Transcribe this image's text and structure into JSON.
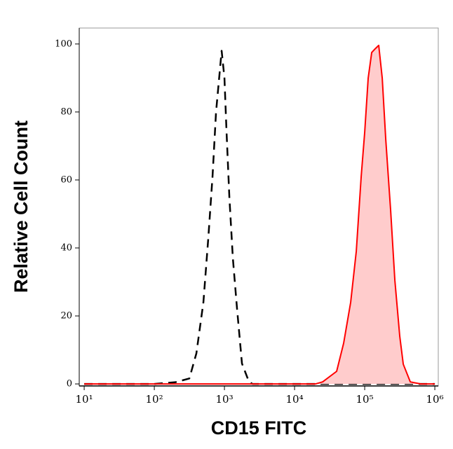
{
  "chart_data": {
    "type": "histogram-overlay",
    "x_label": "CD15 FITC",
    "y_label": "Relative Cell Count",
    "xscale": "log",
    "xlim": [
      8.5,
      1120000
    ],
    "ylim": [
      -0.6,
      104.7
    ],
    "xticks": [
      {
        "value": 10,
        "label": "10¹"
      },
      {
        "value": 100,
        "label": "10²"
      },
      {
        "value": 1000,
        "label": "10³"
      },
      {
        "value": 10000,
        "label": "10⁴"
      },
      {
        "value": 100000,
        "label": "10⁵"
      },
      {
        "value": 1000000,
        "label": "10⁶"
      }
    ],
    "yticks": [
      0,
      20,
      40,
      60,
      80,
      100
    ],
    "series": [
      {
        "color": "#000000",
        "dashed": true,
        "filled": false,
        "x": [
          10,
          100,
          200,
          316,
          398,
          501,
          589,
          676,
          759,
          832,
          912,
          1000,
          1072,
          1175,
          1318,
          1514,
          1778,
          2239,
          2512,
          10000,
          100000,
          1000000
        ],
        "values": [
          0,
          0,
          0.5,
          1.6,
          9,
          24,
          43,
          61,
          80,
          89,
          98,
          90,
          74,
          55,
          37,
          22,
          6,
          0.6,
          0,
          0,
          0,
          0
        ]
      },
      {
        "color": "#ff0000",
        "dashed": false,
        "filled": true,
        "fill": "#ffcccc",
        "x": [
          10,
          1000,
          19953,
          25119,
          39811,
          50119,
          63096,
          75858,
          89125,
          100000,
          112202,
          125893,
          141254,
          158489,
          177828,
          199526,
          234423,
          269153,
          316228,
          354813,
          446684,
          630957,
          1000000
        ],
        "values": [
          0,
          0,
          0,
          0.6,
          3.7,
          12,
          24,
          39,
          61,
          74,
          90,
          97.5,
          98.6,
          99.6,
          90,
          72,
          51,
          30.5,
          14,
          5.8,
          0.6,
          0,
          0
        ]
      }
    ]
  }
}
